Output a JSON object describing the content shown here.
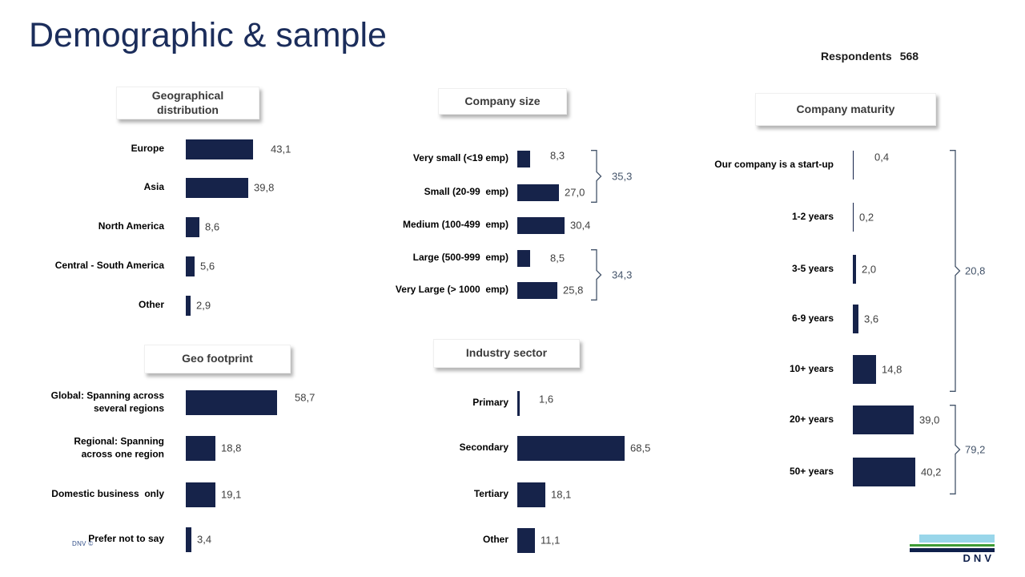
{
  "slide_title": "Demographic & sample",
  "respondents": {
    "label": "Respondents",
    "value": "568"
  },
  "footer": {
    "copyright": "DNV ©",
    "logo_text": "DNV"
  },
  "colors": {
    "bar": "#16234a",
    "title": "#1b2d5b",
    "header_text": "#3a3a3a",
    "value_text": "#3f3f3f",
    "bracket": "#44546a",
    "logo_light_blue": "#99d6ea",
    "logo_green": "#3f9c35",
    "logo_navy": "#0f204b"
  },
  "chart_data": [
    {
      "id": "geographical",
      "type": "bar",
      "orientation": "horizontal",
      "title": "Geographical\ndistribution",
      "categories": [
        "Europe",
        "Asia",
        "North America",
        "Central - South America",
        "Other"
      ],
      "values": [
        43.1,
        39.8,
        8.6,
        5.6,
        2.9
      ],
      "value_labels": [
        "43,1",
        "39,8",
        "8,6",
        "5,6",
        "2,9"
      ],
      "xlim": [
        0,
        100
      ],
      "grid": false,
      "legend": false
    },
    {
      "id": "company_size",
      "type": "bar",
      "orientation": "horizontal",
      "title": "Company size",
      "categories": [
        "Very small (<19 emp)",
        "Small (20-99  emp)",
        "Medium (100-499  emp)",
        "Large (500-999  emp)",
        "Very Large (> 1000  emp)"
      ],
      "values": [
        8.3,
        27.0,
        30.4,
        8.5,
        25.8
      ],
      "value_labels": [
        "8,3",
        "27,0",
        "30,4",
        "8,5",
        "25,8"
      ],
      "brackets": [
        {
          "label": "35,3",
          "from": 0,
          "to": 1
        },
        {
          "label": "34,3",
          "from": 3,
          "to": 4
        }
      ],
      "xlim": [
        0,
        100
      ],
      "grid": false,
      "legend": false
    },
    {
      "id": "company_maturity",
      "type": "bar",
      "orientation": "horizontal",
      "title": "Company maturity",
      "categories": [
        "Our company is a start-up",
        "1-2 years",
        "3-5 years",
        "6-9 years",
        "10+ years",
        "20+ years",
        "50+ years"
      ],
      "values": [
        0.4,
        0.2,
        2.0,
        3.6,
        14.8,
        39.0,
        40.2
      ],
      "value_labels": [
        "0,4",
        "0,2",
        "2,0",
        "3,6",
        "14,8",
        "39,0",
        "40,2"
      ],
      "brackets": [
        {
          "label": "20,8",
          "from": 0,
          "to": 4
        },
        {
          "label": "79,2",
          "from": 5,
          "to": 6
        }
      ],
      "xlim": [
        0,
        100
      ],
      "grid": false,
      "legend": false
    },
    {
      "id": "geo_footprint",
      "type": "bar",
      "orientation": "horizontal",
      "title": "Geo footprint",
      "categories": [
        "Global: Spanning across\nseveral regions",
        "Regional: Spanning\nacross one region",
        "Domestic business  only",
        "Prefer not to say"
      ],
      "values": [
        58.7,
        18.8,
        19.1,
        3.4
      ],
      "value_labels": [
        "58,7",
        "18,8",
        "19,1",
        "3,4"
      ],
      "xlim": [
        0,
        100
      ],
      "grid": false,
      "legend": false
    },
    {
      "id": "industry_sector",
      "type": "bar",
      "orientation": "horizontal",
      "title": "Industry sector",
      "categories": [
        "Primary",
        "Secondary",
        "Tertiary",
        "Other"
      ],
      "values": [
        1.6,
        68.5,
        18.1,
        11.1
      ],
      "value_labels": [
        "1,6",
        "68,5",
        "18,1",
        "11,1"
      ],
      "xlim": [
        0,
        100
      ],
      "grid": false,
      "legend": false
    }
  ]
}
